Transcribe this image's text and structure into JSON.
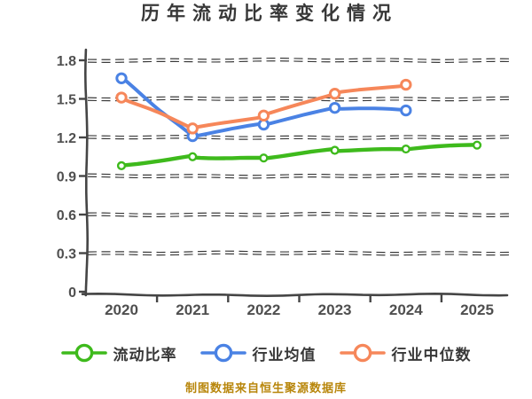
{
  "title": "历年流动比率变化情况",
  "footer": "制图数据来自恒生聚源数据库",
  "colors": {
    "background": "#ffffff",
    "title_text": "#383838",
    "legend_text": "#383838",
    "footer_text": "#b8860b",
    "axis": "#454545",
    "tick_label": "#4f4f4f",
    "grid_dark": "#3b3b3b",
    "grid_light": "#ffffff",
    "series_green": "#3eba1c",
    "series_blue": "#4a82e4",
    "series_orange": "#f6875a"
  },
  "chart_data": {
    "type": "line",
    "title": "历年流动比率变化情况",
    "x": [
      "2020",
      "2021",
      "2022",
      "2023",
      "2024",
      "2025"
    ],
    "series": [
      {
        "name": "流动比率",
        "color": "#3eba1c",
        "values": [
          0.98,
          1.05,
          1.04,
          1.1,
          1.11,
          1.14
        ]
      },
      {
        "name": "行业均值",
        "color": "#4a82e4",
        "values": [
          1.66,
          1.21,
          1.3,
          1.43,
          1.41,
          null
        ]
      },
      {
        "name": "行业中位数",
        "color": "#f6875a",
        "values": [
          1.51,
          1.27,
          1.37,
          1.54,
          1.61,
          null
        ]
      }
    ],
    "xlabel": "",
    "ylabel": "",
    "ylim": [
      0,
      1.8
    ],
    "yticks": [
      0,
      0.3,
      0.6,
      0.9,
      1.2,
      1.5,
      1.8
    ],
    "grid": "horizontal-dashed",
    "legend_position": "bottom",
    "marker": "circle-white-fill",
    "style": "hand-drawn"
  }
}
